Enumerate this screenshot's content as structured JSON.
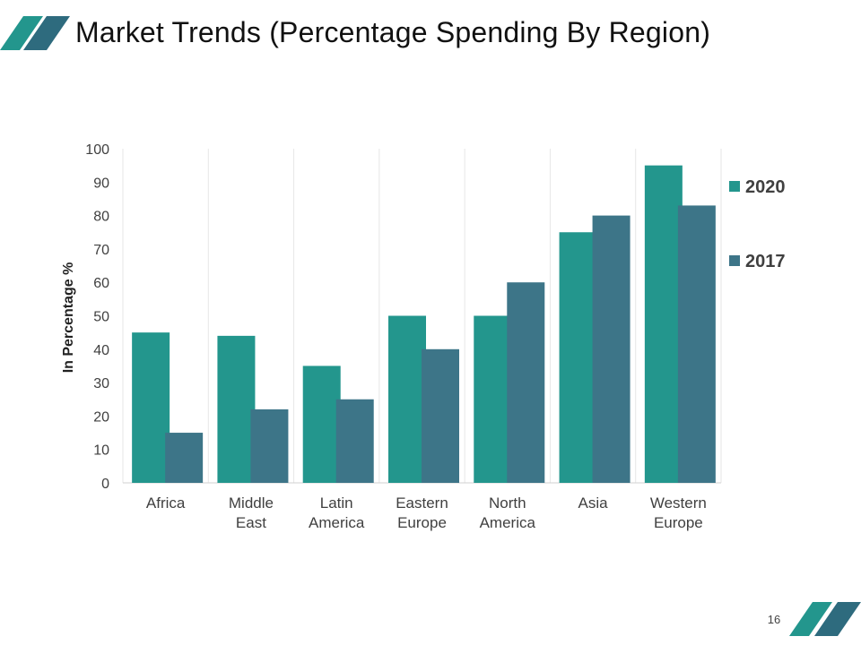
{
  "slide": {
    "title": "Market Trends (Percentage Spending By Region)",
    "page_number": "16"
  },
  "colors": {
    "series_2020": "#23968d",
    "series_2017": "#3d7588",
    "accent_dark": "#2e6b7e",
    "gridline": "#e6e6e6"
  },
  "chart_data": {
    "type": "bar",
    "title": "",
    "xlabel": "",
    "ylabel": "In Percentage %",
    "ylim": [
      0,
      100
    ],
    "yticks": [
      0,
      10,
      20,
      30,
      40,
      50,
      60,
      70,
      80,
      90,
      100
    ],
    "categories": [
      "Africa",
      "Middle East",
      "Latin America",
      "Eastern Europe",
      "North America",
      "Asia",
      "Western Europe"
    ],
    "category_lines": [
      [
        "Africa"
      ],
      [
        "Middle",
        "East"
      ],
      [
        "Latin",
        "America"
      ],
      [
        "Eastern",
        "Europe"
      ],
      [
        "North",
        "America"
      ],
      [
        "Asia"
      ],
      [
        "Western",
        "Europe"
      ]
    ],
    "series": [
      {
        "name": "2020",
        "values": [
          45,
          44,
          35,
          50,
          50,
          75,
          95
        ]
      },
      {
        "name": "2017",
        "values": [
          15,
          22,
          25,
          40,
          60,
          80,
          83
        ]
      }
    ],
    "legend_position": "right",
    "grid": "vertical"
  }
}
